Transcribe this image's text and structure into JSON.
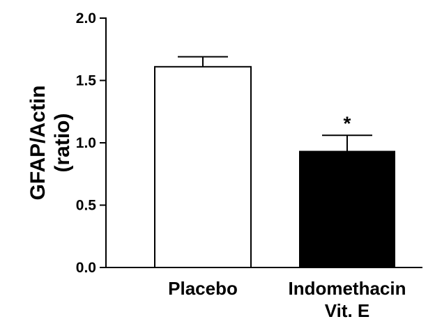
{
  "chart_data": {
    "type": "bar",
    "ylabel_lines": [
      "GFAP/Actin",
      "(ratio)"
    ],
    "ylim": [
      0.0,
      2.0
    ],
    "yticks": [
      0.0,
      0.5,
      1.0,
      1.5,
      2.0
    ],
    "ytick_labels": [
      "0.0",
      "0.5",
      "1.0",
      "1.5",
      "2.0"
    ],
    "categories": [
      {
        "lines": [
          "Placebo"
        ]
      },
      {
        "lines": [
          "Indomethacin",
          "Vit. E"
        ]
      }
    ],
    "values": [
      1.61,
      0.93
    ],
    "errors": [
      0.08,
      0.13
    ],
    "bar_colors": [
      "#ffffff",
      "#000000"
    ],
    "annotations": [
      {
        "category_index": 1,
        "text": "*"
      }
    ],
    "grid": false,
    "legend": "none"
  }
}
